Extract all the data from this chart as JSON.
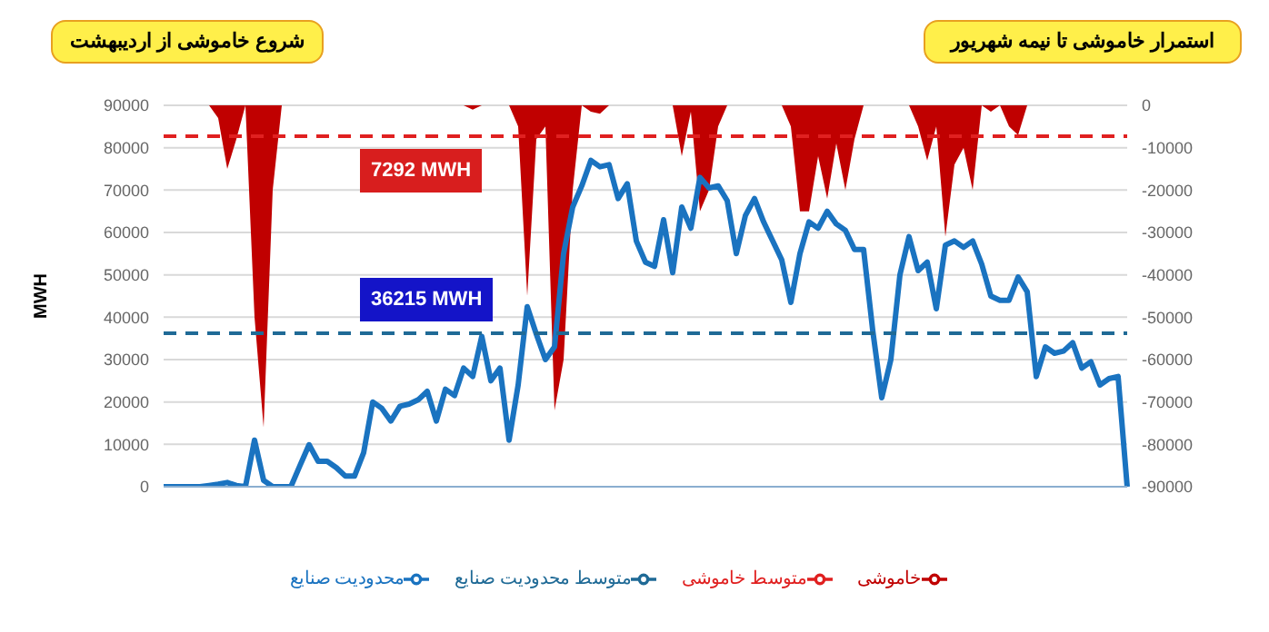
{
  "chart_data": {
    "type": "line",
    "ylabel": "MWH",
    "categories": [
      null,
      null,
      null,
      null,
      null,
      null,
      null,
      null,
      null,
      null,
      null,
      null,
      null,
      null,
      null,
      null,
      null,
      null,
      null,
      null,
      null,
      null,
      null,
      null,
      null,
      null,
      null,
      null,
      null,
      null,
      null,
      null,
      null,
      null,
      null,
      null,
      null,
      null,
      null,
      null,
      null,
      null,
      null,
      null,
      null,
      null,
      null,
      null,
      null,
      null,
      null,
      null,
      null,
      null,
      null,
      null,
      null,
      null,
      null,
      null,
      null,
      null,
      null,
      null,
      null,
      null,
      null,
      null,
      null,
      null,
      null,
      null,
      null,
      null,
      null,
      null,
      null,
      null,
      null,
      null,
      null,
      null,
      null,
      null,
      null,
      null,
      null,
      null,
      null,
      null,
      null,
      null,
      null,
      null,
      null,
      null,
      null,
      null,
      null,
      null,
      null,
      null,
      null,
      null,
      null,
      null,
      null
    ],
    "series": [
      {
        "name": "محدودیت صنایع",
        "color": "#1a73c0",
        "values": [
          0,
          0,
          0,
          0,
          0,
          300,
          600,
          1000,
          300,
          0,
          11000,
          1500,
          0,
          0,
          0,
          5000,
          9900,
          6000,
          6000,
          4500,
          2500,
          2500,
          8000,
          20000,
          18500,
          15500,
          19000,
          19500,
          20500,
          22500,
          15500,
          23000,
          21500,
          28000,
          26000,
          35500,
          25000,
          28000,
          11000,
          24000,
          42500,
          36000,
          30000,
          33000,
          55000,
          66000,
          71000,
          77000,
          75500,
          76000,
          68000,
          71500,
          58000,
          53000,
          52000,
          63000,
          50500,
          66000,
          61000,
          73000,
          70500,
          71000,
          67500,
          55000,
          64000,
          68000,
          62500,
          58000,
          53500,
          43500,
          55000,
          62500,
          61000,
          65000,
          62000,
          60500,
          56000,
          56000,
          37000,
          21000,
          30000,
          50000,
          59000,
          51000,
          53000,
          42000,
          57000,
          58000,
          56500,
          58000,
          52500,
          45000,
          44000,
          44000,
          49500,
          46000,
          26000,
          33000,
          31500,
          32000,
          34000,
          28000,
          29500,
          24000,
          25500,
          26000,
          0
        ]
      },
      {
        "name": "خاموشی",
        "type": "area",
        "axis": "y2",
        "color": "#c00000",
        "values": [
          0,
          0,
          0,
          0,
          0,
          0,
          -3000,
          -15000,
          -8000,
          0,
          -50000,
          -76000,
          -20000,
          0,
          0,
          0,
          0,
          0,
          0,
          0,
          0,
          0,
          0,
          0,
          0,
          0,
          0,
          0,
          0,
          0,
          0,
          0,
          0,
          0,
          -1000,
          0,
          0,
          0,
          0,
          -5000,
          -45000,
          -8000,
          -5000,
          -72000,
          -60000,
          -20000,
          0,
          -1500,
          -2000,
          0,
          0,
          0,
          0,
          0,
          0,
          0,
          0,
          -12000,
          -1500,
          -25000,
          -20000,
          -5000,
          0,
          0,
          0,
          0,
          0,
          0,
          0,
          -5000,
          -25000,
          -25000,
          -12000,
          -22000,
          -9000,
          -20000,
          -8000,
          0,
          0,
          0,
          0,
          0,
          0,
          -5000,
          -13000,
          -5000,
          -31000,
          -14000,
          -10000,
          -20000,
          0,
          -1500,
          0,
          -5000,
          -7000,
          0,
          0,
          0,
          0,
          0,
          0,
          0,
          0,
          0,
          0,
          0,
          0
        ]
      },
      {
        "name": "متوسط محدودیت صنایع",
        "line_style": "dashed",
        "color": "#1f6a96",
        "values": [
          36215,
          36215,
          36215,
          36215,
          36215,
          36215,
          36215,
          36215,
          36215,
          36215,
          36215,
          36215,
          36215,
          36215,
          36215,
          36215,
          36215,
          36215,
          36215,
          36215,
          36215,
          36215,
          36215,
          36215,
          36215,
          36215,
          36215,
          36215,
          36215,
          36215,
          36215,
          36215,
          36215,
          36215,
          36215,
          36215,
          36215,
          36215,
          36215,
          36215,
          36215,
          36215,
          36215,
          36215,
          36215,
          36215,
          36215,
          36215,
          36215,
          36215,
          36215,
          36215,
          36215,
          36215,
          36215,
          36215,
          36215,
          36215,
          36215,
          36215,
          36215,
          36215,
          36215,
          36215,
          36215,
          36215,
          36215,
          36215,
          36215,
          36215,
          36215,
          36215,
          36215,
          36215,
          36215,
          36215,
          36215,
          36215,
          36215,
          36215,
          36215,
          36215,
          36215,
          36215,
          36215,
          36215,
          36215,
          36215,
          36215,
          36215,
          36215,
          36215,
          36215,
          36215,
          36215,
          36215,
          36215,
          36215,
          36215,
          36215,
          36215,
          36215,
          36215,
          36215,
          36215,
          36215,
          36215
        ]
      },
      {
        "name": "متوسط خاموشی",
        "axis": "y2",
        "line_style": "dashed",
        "color": "#e02020",
        "values": [
          -7292,
          -7292,
          -7292,
          -7292,
          -7292,
          -7292,
          -7292,
          -7292,
          -7292,
          -7292,
          -7292,
          -7292,
          -7292,
          -7292,
          -7292,
          -7292,
          -7292,
          -7292,
          -7292,
          -7292,
          -7292,
          -7292,
          -7292,
          -7292,
          -7292,
          -7292,
          -7292,
          -7292,
          -7292,
          -7292,
          -7292,
          -7292,
          -7292,
          -7292,
          -7292,
          -7292,
          -7292,
          -7292,
          -7292,
          -7292,
          -7292,
          -7292,
          -7292,
          -7292,
          -7292,
          -7292,
          -7292,
          -7292,
          -7292,
          -7292,
          -7292,
          -7292,
          -7292,
          -7292,
          -7292,
          -7292,
          -7292,
          -7292,
          -7292,
          -7292,
          -7292,
          -7292,
          -7292,
          -7292,
          -7292,
          -7292,
          -7292,
          -7292,
          -7292,
          -7292,
          -7292,
          -7292,
          -7292,
          -7292,
          -7292,
          -7292,
          -7292,
          -7292,
          -7292,
          -7292,
          -7292,
          -7292,
          -7292,
          -7292,
          -7292,
          -7292,
          -7292,
          -7292,
          -7292,
          -7292,
          -7292,
          -7292,
          -7292,
          -7292,
          -7292,
          -7292,
          -7292,
          -7292,
          -7292,
          -7292,
          -7292,
          -7292,
          -7292,
          -7292,
          -7292,
          -7292,
          -7292
        ]
      }
    ],
    "ylim": [
      0,
      90000
    ],
    "yticks": [
      0,
      10000,
      20000,
      30000,
      40000,
      50000,
      60000,
      70000,
      80000,
      90000
    ],
    "y2lim": [
      -90000,
      0
    ],
    "y2ticks": [
      -90000,
      -80000,
      -70000,
      -60000,
      -50000,
      -40000,
      -30000,
      -20000,
      -10000,
      0
    ],
    "grid": "y",
    "legend": "bottom",
    "marker": "none",
    "annotations": [
      "شروع خاموشی از اردیبهشت",
      "استمرار خاموشی تا نیمه شهریور",
      "7292 MWH",
      {
        "text": "36215 MWH",
        "y": 36215
      }
    ]
  }
}
